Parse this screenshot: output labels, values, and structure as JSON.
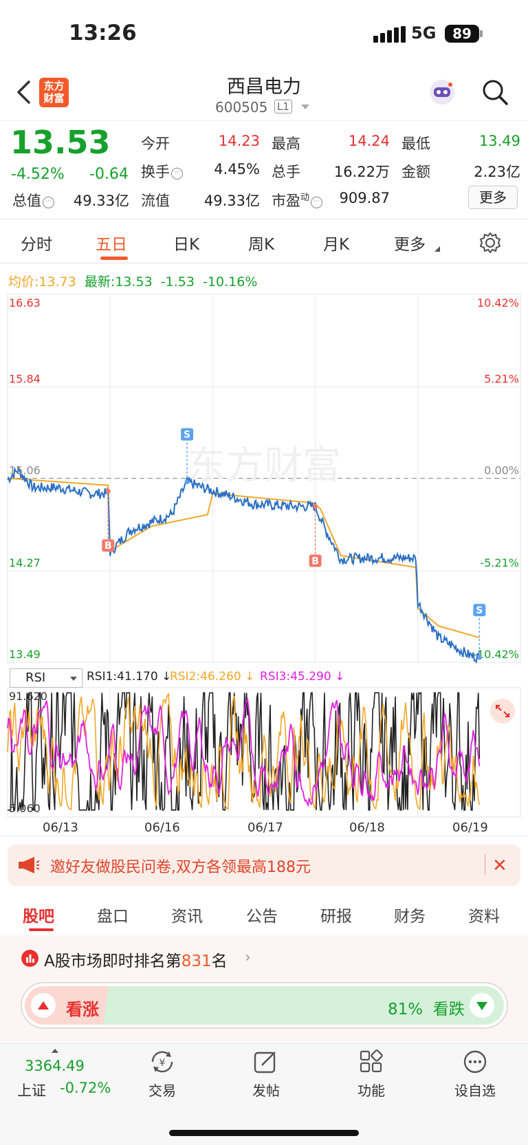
{
  "status": {
    "time": "13:26",
    "network": "5G",
    "battery": "89"
  },
  "header": {
    "logo_line1": "东方",
    "logo_line2": "财富",
    "title": "西昌电力",
    "code": "600505",
    "level": "L1"
  },
  "quote": {
    "price": "13.53",
    "change_pct": "-4.52%",
    "change": "-0.64",
    "open_label": "今开",
    "open": "14.23",
    "high_label": "最高",
    "high": "14.24",
    "low_label": "最低",
    "low": "13.49",
    "turnover_label": "换手",
    "turnover": "4.45%",
    "volume_label": "总手",
    "volume": "16.22万",
    "amount_label": "金额",
    "amount": "2.23亿",
    "mktcap_label": "总值",
    "mktcap": "49.33亿",
    "float_label": "流值",
    "float": "49.33亿",
    "pe_label": "市盈",
    "pe_sup": "动",
    "pe": "909.87",
    "more": "更多"
  },
  "tabs": [
    "分时",
    "五日",
    "日K",
    "周K",
    "月K",
    "更多"
  ],
  "avg": {
    "avg_label": "均价:",
    "avg": "13.73",
    "last_label": "最新:",
    "last": "13.53",
    "chg": "-1.53",
    "pct": "-10.16%"
  },
  "chart_data": [
    {
      "type": "line",
      "title": "",
      "x": [
        "06/13",
        "06/16",
        "06/17",
        "06/18",
        "06/19"
      ],
      "y_left_ticks": [
        "16.63",
        "15.84",
        "15.06",
        "14.27",
        "13.49"
      ],
      "y_right_ticks": [
        "10.42%",
        "5.21%",
        "0.00%",
        "-5.21%",
        "-10.42%"
      ],
      "ylim": [
        13.49,
        16.63
      ],
      "series": [
        {
          "name": "price",
          "color": "#2a6fc4"
        },
        {
          "name": "均价",
          "color": "#f3a626"
        }
      ],
      "markers": [
        {
          "label": "B",
          "day": "06/13"
        },
        {
          "label": "S",
          "day": "06/16"
        },
        {
          "label": "B",
          "day": "06/17"
        },
        {
          "label": "S",
          "day": "06/19"
        }
      ],
      "watermark": "东方财富"
    },
    {
      "type": "line",
      "indicator": "RSI",
      "y_ticks": [
        "91.620",
        "5.060"
      ],
      "ylim": [
        5.06,
        91.62
      ],
      "series": [
        {
          "name": "RSI1",
          "value": "41.170",
          "color": "#222222"
        },
        {
          "name": "RSI2",
          "value": "46.260",
          "color": "#f3a626"
        },
        {
          "name": "RSI3",
          "value": "45.290",
          "color": "#e022e0"
        }
      ]
    }
  ],
  "rsi": {
    "selector": "RSI",
    "l1": "RSI1:41.170 ↓",
    "l2": "RSI2:46.260 ↓",
    "l3": "RSI3:45.290 ↓"
  },
  "banner": {
    "text": "邀好友做股民问卷,双方各领最高188元"
  },
  "sections": [
    "股吧",
    "盘口",
    "资讯",
    "公告",
    "研报",
    "财务",
    "资料"
  ],
  "rank": {
    "prefix": "A股市场即时排名第",
    "num": "831",
    "suffix": "名"
  },
  "vote": {
    "up": "看涨",
    "down_pct": "81%",
    "down": "看跌"
  },
  "bottom": {
    "index_value": "3364.49",
    "index_name": "上证",
    "index_chg": "-0.72%",
    "trade": "交易",
    "post": "发帖",
    "func": "功能",
    "watch": "设自选"
  }
}
